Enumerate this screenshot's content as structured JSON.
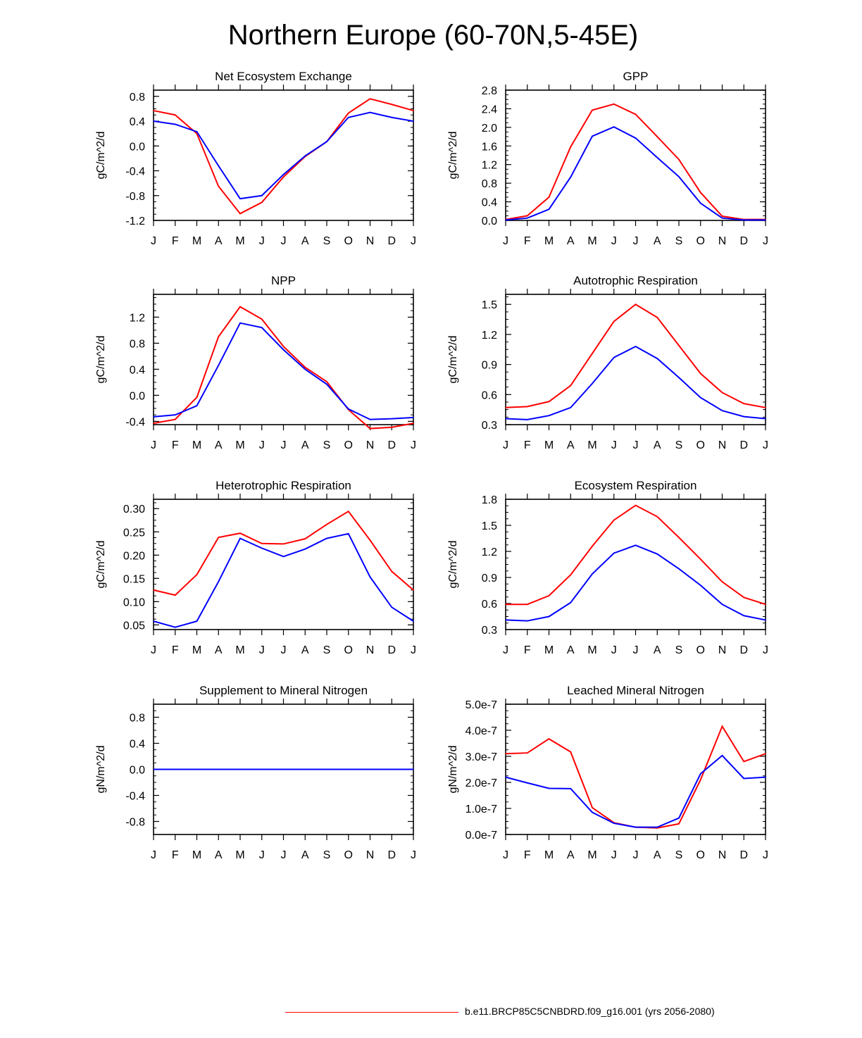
{
  "title": "Northern Europe (60-70N,5-45E)",
  "legend": {
    "label": "b.e11.BRCP85C5CNBDRD.f09_g16.001 (yrs 2056-2080)",
    "color": "#ff0000"
  },
  "colors": {
    "series_red": "#ff0000",
    "series_blue": "#0000ff",
    "axis": "#000000"
  },
  "chart_data": [
    {
      "type": "line",
      "title": "Net Ecosystem Exchange",
      "ylabel": "gC/m^2/d",
      "xlabel": "",
      "categories": [
        "J",
        "F",
        "M",
        "A",
        "M",
        "J",
        "J",
        "A",
        "S",
        "O",
        "N",
        "D",
        "J"
      ],
      "ylim": [
        -1.2,
        0.9
      ],
      "yticks": [
        "0.8",
        "0.4",
        "0.0",
        "-0.4",
        "-0.8",
        "-1.2"
      ],
      "series": [
        {
          "name": "red",
          "color": "#ff0000",
          "values": [
            0.57,
            0.5,
            0.2,
            -0.65,
            -1.09,
            -0.91,
            -0.5,
            -0.17,
            0.07,
            0.53,
            0.76,
            0.67,
            0.57
          ]
        },
        {
          "name": "blue",
          "color": "#0000ff",
          "values": [
            0.4,
            0.35,
            0.23,
            -0.32,
            -0.85,
            -0.8,
            -0.46,
            -0.16,
            0.07,
            0.46,
            0.54,
            0.46,
            0.4
          ]
        }
      ]
    },
    {
      "type": "line",
      "title": "GPP",
      "ylabel": "gC/m^2/d",
      "xlabel": "",
      "categories": [
        "J",
        "F",
        "M",
        "A",
        "M",
        "J",
        "J",
        "A",
        "S",
        "O",
        "N",
        "D",
        "J"
      ],
      "ylim": [
        0.0,
        2.8
      ],
      "yticks": [
        "2.8",
        "2.4",
        "2.0",
        "1.6",
        "1.2",
        "0.8",
        "0.4",
        "0.0"
      ],
      "series": [
        {
          "name": "red",
          "color": "#ff0000",
          "values": [
            0.02,
            0.1,
            0.5,
            1.58,
            2.37,
            2.5,
            2.28,
            1.8,
            1.31,
            0.6,
            0.09,
            0.02,
            0.02
          ]
        },
        {
          "name": "blue",
          "color": "#0000ff",
          "values": [
            0.01,
            0.05,
            0.24,
            0.93,
            1.81,
            2.01,
            1.77,
            1.35,
            0.94,
            0.37,
            0.05,
            0.01,
            0.01
          ]
        }
      ]
    },
    {
      "type": "line",
      "title": "NPP",
      "ylabel": "gC/m^2/d",
      "xlabel": "",
      "categories": [
        "J",
        "F",
        "M",
        "A",
        "M",
        "J",
        "J",
        "A",
        "S",
        "O",
        "N",
        "D",
        "J"
      ],
      "ylim": [
        -0.45,
        1.55
      ],
      "yticks": [
        "1.2",
        "0.8",
        "0.4",
        "0.0",
        "-0.4"
      ],
      "series": [
        {
          "name": "red",
          "color": "#ff0000",
          "values": [
            -0.43,
            -0.37,
            -0.03,
            0.9,
            1.36,
            1.17,
            0.75,
            0.43,
            0.21,
            -0.22,
            -0.51,
            -0.49,
            -0.43
          ]
        },
        {
          "name": "blue",
          "color": "#0000ff",
          "values": [
            -0.33,
            -0.3,
            -0.16,
            0.46,
            1.11,
            1.04,
            0.7,
            0.4,
            0.17,
            -0.21,
            -0.37,
            -0.36,
            -0.34
          ]
        }
      ]
    },
    {
      "type": "line",
      "title": "Autotrophic Respiration",
      "ylabel": "gC/m^2/d",
      "xlabel": "",
      "categories": [
        "J",
        "F",
        "M",
        "A",
        "M",
        "J",
        "J",
        "A",
        "S",
        "O",
        "N",
        "D",
        "J"
      ],
      "ylim": [
        0.3,
        1.6
      ],
      "yticks": [
        "1.5",
        "1.2",
        "0.9",
        "0.6",
        "0.3"
      ],
      "series": [
        {
          "name": "red",
          "color": "#ff0000",
          "values": [
            0.47,
            0.48,
            0.53,
            0.69,
            1.01,
            1.33,
            1.5,
            1.37,
            1.09,
            0.81,
            0.62,
            0.51,
            0.47
          ]
        },
        {
          "name": "blue",
          "color": "#0000ff",
          "values": [
            0.36,
            0.35,
            0.39,
            0.47,
            0.71,
            0.97,
            1.08,
            0.96,
            0.77,
            0.57,
            0.44,
            0.38,
            0.36
          ]
        }
      ]
    },
    {
      "type": "line",
      "title": "Heterotrophic Respiration",
      "ylabel": "gC/m^2/d",
      "xlabel": "",
      "categories": [
        "J",
        "F",
        "M",
        "A",
        "M",
        "J",
        "J",
        "A",
        "S",
        "O",
        "N",
        "D",
        "J"
      ],
      "ylim": [
        0.04,
        0.32
      ],
      "yticks": [
        "0.30",
        "0.25",
        "0.20",
        "0.15",
        "0.10",
        "0.05"
      ],
      "series": [
        {
          "name": "red",
          "color": "#ff0000",
          "values": [
            0.125,
            0.114,
            0.158,
            0.238,
            0.247,
            0.225,
            0.224,
            0.235,
            0.266,
            0.294,
            0.232,
            0.165,
            0.125
          ]
        },
        {
          "name": "blue",
          "color": "#0000ff",
          "values": [
            0.058,
            0.045,
            0.058,
            0.143,
            0.236,
            0.215,
            0.197,
            0.213,
            0.236,
            0.246,
            0.153,
            0.088,
            0.058
          ]
        }
      ]
    },
    {
      "type": "line",
      "title": "Ecosystem Respiration",
      "ylabel": "gC/m^2/d",
      "xlabel": "",
      "categories": [
        "J",
        "F",
        "M",
        "A",
        "M",
        "J",
        "J",
        "A",
        "S",
        "O",
        "N",
        "D",
        "J"
      ],
      "ylim": [
        0.3,
        1.8
      ],
      "yticks": [
        "1.8",
        "1.5",
        "1.2",
        "0.9",
        "0.6",
        "0.3"
      ],
      "series": [
        {
          "name": "red",
          "color": "#ff0000",
          "values": [
            0.59,
            0.59,
            0.69,
            0.93,
            1.26,
            1.56,
            1.73,
            1.6,
            1.36,
            1.11,
            0.85,
            0.67,
            0.59
          ]
        },
        {
          "name": "blue",
          "color": "#0000ff",
          "values": [
            0.41,
            0.4,
            0.45,
            0.61,
            0.94,
            1.18,
            1.27,
            1.17,
            1.0,
            0.81,
            0.59,
            0.46,
            0.41
          ]
        }
      ]
    },
    {
      "type": "line",
      "title": "Supplement to Mineral Nitrogen",
      "ylabel": "gN/m^2/d",
      "xlabel": "",
      "categories": [
        "J",
        "F",
        "M",
        "A",
        "M",
        "J",
        "J",
        "A",
        "S",
        "O",
        "N",
        "D",
        "J"
      ],
      "ylim": [
        -1.0,
        1.0
      ],
      "yticks": [
        "0.8",
        "0.4",
        "0.0",
        "-0.4",
        "-0.8"
      ],
      "series": [
        {
          "name": "red",
          "color": "#ff0000",
          "values": [
            0,
            0,
            0,
            0,
            0,
            0,
            0,
            0,
            0,
            0,
            0,
            0,
            0
          ]
        },
        {
          "name": "blue",
          "color": "#0000ff",
          "values": [
            0,
            0,
            0,
            0,
            0,
            0,
            0,
            0,
            0,
            0,
            0,
            0,
            0
          ]
        }
      ]
    },
    {
      "type": "line",
      "title": "Leached Mineral Nitrogen",
      "ylabel": "gN/m^2/d",
      "xlabel": "",
      "categories": [
        "J",
        "F",
        "M",
        "A",
        "M",
        "J",
        "J",
        "A",
        "S",
        "O",
        "N",
        "D",
        "J"
      ],
      "ylim": [
        0,
        5e-07
      ],
      "yticks": [
        "5.0e-7",
        "4.0e-7",
        "3.0e-7",
        "2.0e-7",
        "1.0e-7",
        "0.0e-7"
      ],
      "series": [
        {
          "name": "red",
          "color": "#ff0000",
          "values": [
            3.1e-07,
            3.13e-07,
            3.67e-07,
            3.17e-07,
            1.03e-07,
            4.5e-08,
            2.8e-08,
            2.5e-08,
            4.1e-08,
            2.1e-07,
            4.15e-07,
            2.8e-07,
            3.1e-07
          ]
        },
        {
          "name": "blue",
          "color": "#0000ff",
          "values": [
            2.2e-07,
            1.98e-07,
            1.77e-07,
            1.76e-07,
            8.5e-08,
            4.3e-08,
            2.8e-08,
            2.8e-08,
            6.3e-08,
            2.33e-07,
            3.03e-07,
            2.15e-07,
            2.2e-07
          ]
        }
      ]
    }
  ]
}
